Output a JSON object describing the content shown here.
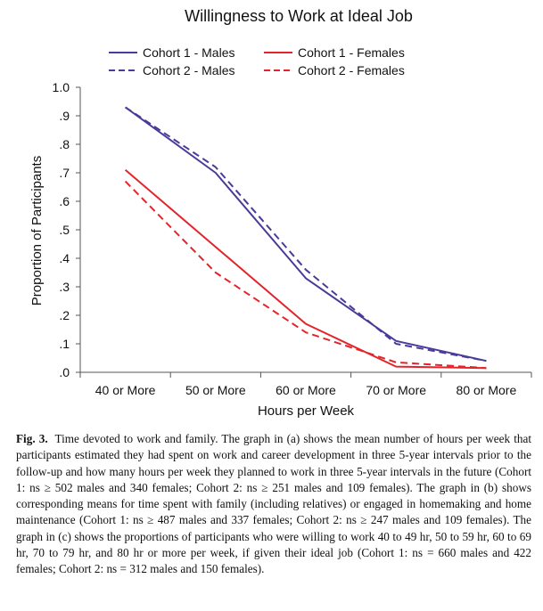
{
  "chart_data": {
    "type": "line",
    "title": "Willingness to Work at Ideal Job",
    "xlabel": "Hours per Week",
    "ylabel": "Proportion of Participants",
    "categories": [
      "40 or More",
      "50 or More",
      "60 or More",
      "70 or More",
      "80 or More"
    ],
    "yticks": [
      "1.0",
      ".9",
      ".8",
      ".7",
      ".6",
      ".5",
      ".4",
      ".3",
      ".2",
      ".1",
      ".0"
    ],
    "ylim": [
      0,
      1
    ],
    "legend_position": "top",
    "series": [
      {
        "name": "Cohort 1 - Males",
        "color": "#4b3a99",
        "dash": "solid",
        "values": [
          0.93,
          0.7,
          0.33,
          0.11,
          0.04
        ]
      },
      {
        "name": "Cohort 2 - Males",
        "color": "#4b3a99",
        "dash": "dashed",
        "values": [
          0.93,
          0.72,
          0.36,
          0.1,
          0.04
        ]
      },
      {
        "name": "Cohort 1 - Females",
        "color": "#e3242b",
        "dash": "solid",
        "values": [
          0.71,
          0.44,
          0.17,
          0.02,
          0.015
        ]
      },
      {
        "name": "Cohort 2 - Females",
        "color": "#e3242b",
        "dash": "dashed",
        "values": [
          0.67,
          0.35,
          0.14,
          0.035,
          0.015
        ]
      }
    ]
  },
  "caption": {
    "label": "Fig. 3.",
    "text": "Time devoted to work and family. The graph in (a) shows the mean number of hours per week that participants estimated they had spent on work and career development in three 5-year intervals prior to the follow-up and how many hours per week they planned to work in three 5-year intervals in the future (Cohort 1: ns ≥ 502 males and 340 females; Cohort 2: ns ≥ 251 males and 109 females). The graph in (b) shows corresponding means for time spent with family (including relatives) or engaged in homemaking and home maintenance (Cohort 1: ns ≥ 487 males and 337 females; Cohort 2: ns ≥ 247 males and 109 females). The graph in (c) shows the proportions of participants who were willing to work 40 to 49 hr, 50 to 59 hr, 60 to 69 hr, 70 to 79 hr, and 80 hr or more per week, if given their ideal job (Cohort 1: ns = 660 males and 422 females; Cohort 2: ns = 312 males and 150 females)."
  }
}
